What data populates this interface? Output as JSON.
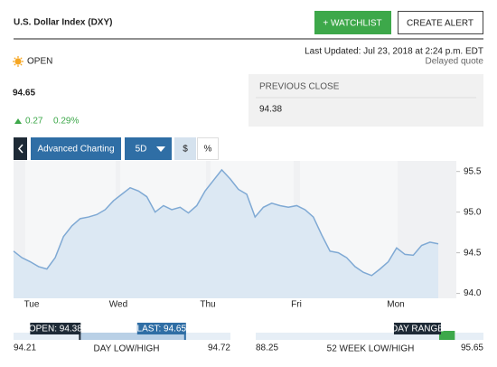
{
  "header": {
    "title": "U.S. Dollar Index (DXY)",
    "watchlist": "+ WATCHLIST",
    "alert": "CREATE ALERT"
  },
  "quote": {
    "status": "OPEN",
    "last_updated": "Last Updated: Jul 23, 2018 at 2:24 p.m. EDT",
    "delayed": "Delayed quote",
    "price": "94.65",
    "change": "0.27",
    "change_percent": "0.29%"
  },
  "previous_close": {
    "label": "PREVIOUS CLOSE",
    "value": "94.38"
  },
  "toolbar": {
    "advanced": "Advanced Charting",
    "period": "5D",
    "currency": "$",
    "percent": "%"
  },
  "chart": {
    "type": "line",
    "color": "#7fa9d4",
    "fill": "#dce8f3",
    "categories": [
      "Tue",
      "Wed",
      "Thu",
      "Fri",
      "Mon"
    ],
    "values": [
      94.52,
      94.44,
      94.39,
      94.33,
      94.3,
      94.44,
      94.7,
      94.83,
      94.92,
      94.94,
      94.97,
      95.03,
      95.14,
      95.22,
      95.3,
      95.26,
      95.19,
      95.0,
      95.08,
      95.03,
      95.06,
      94.99,
      95.08,
      95.26,
      95.39,
      95.52,
      95.41,
      95.28,
      95.22,
      94.94,
      95.06,
      95.11,
      95.08,
      95.06,
      95.08,
      95.03,
      94.94,
      94.72,
      94.52,
      94.5,
      94.44,
      94.33,
      94.26,
      94.22,
      94.3,
      94.39,
      94.56,
      94.48,
      94.47,
      94.59,
      94.63,
      94.61
    ],
    "ylim": [
      93.94,
      95.63
    ],
    "yticks": [
      {
        "value": 94,
        "label": "94.0"
      },
      {
        "value": 94.5,
        "label": "94.5"
      },
      {
        "value": 95,
        "label": "95.0"
      },
      {
        "value": 95.5,
        "label": "95.5"
      }
    ]
  },
  "day_range": {
    "open": {
      "value": 94.38,
      "label": "OPEN: 94.38"
    },
    "last": {
      "value": 94.65,
      "label": "LAST: 94.65"
    },
    "low": 94.21,
    "high": 94.72,
    "label": "DAY LOW/HIGH"
  },
  "week52": {
    "marker": "DAY RANGE",
    "low": 88.25,
    "high": 95.65,
    "label": "52 WEEK LOW/HIGH"
  }
}
